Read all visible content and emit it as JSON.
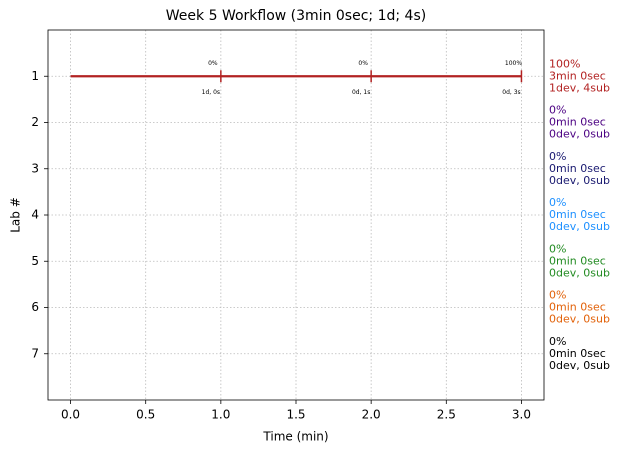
{
  "chart_data": {
    "type": "line",
    "title": "Week 5 Workflow (3min 0sec; 1d; 4s)",
    "x_label": "Time (min)",
    "y_label": "Lab #",
    "xlim": [
      -0.15,
      3.15
    ],
    "xticks": [
      {
        "value": 0,
        "label": "0.0"
      },
      0.5,
      {
        "value": 1,
        "label": "1.0"
      },
      1.5,
      {
        "value": 2,
        "label": "2.0"
      },
      2.5,
      {
        "value": 3,
        "label": "3.0"
      }
    ],
    "ylim": [
      8,
      0
    ],
    "yticks": [
      1,
      2,
      3,
      4,
      5,
      6,
      7
    ],
    "grid": true,
    "series": [
      {
        "color": "#b22222",
        "x": [
          0,
          3
        ],
        "values": [
          1,
          1
        ]
      }
    ],
    "events": [
      {
        "x": 1,
        "y": 1,
        "top_label": "0%",
        "bottom_label": "1d, 0s"
      },
      {
        "x": 2,
        "y": 1,
        "top_label": "0%",
        "bottom_label": "0d, 1s"
      },
      {
        "x": 3,
        "y": 1,
        "top_label": "100%",
        "bottom_label": "0d, 3s"
      }
    ],
    "summaries": [
      {
        "color": "#b22222",
        "lines": [
          "100%",
          "3min 0sec",
          "1dev, 4sub"
        ]
      },
      {
        "color": "#4b0082",
        "lines": [
          "0%",
          "0min 0sec",
          "0dev, 0sub"
        ]
      },
      {
        "color": "#191970",
        "lines": [
          "0%",
          "0min 0sec",
          "0dev, 0sub"
        ]
      },
      {
        "color": "#1e90ff",
        "lines": [
          "0%",
          "0min 0sec",
          "0dev, 0sub"
        ]
      },
      {
        "color": "#228b22",
        "lines": [
          "0%",
          "0min 0sec",
          "0dev, 0sub"
        ]
      },
      {
        "color": "#e2620a",
        "lines": [
          "0%",
          "0min 0sec",
          "0dev, 0sub"
        ]
      },
      {
        "color": "#000000",
        "lines": [
          "0%",
          "0min 0sec",
          "0dev, 0sub"
        ]
      }
    ]
  }
}
